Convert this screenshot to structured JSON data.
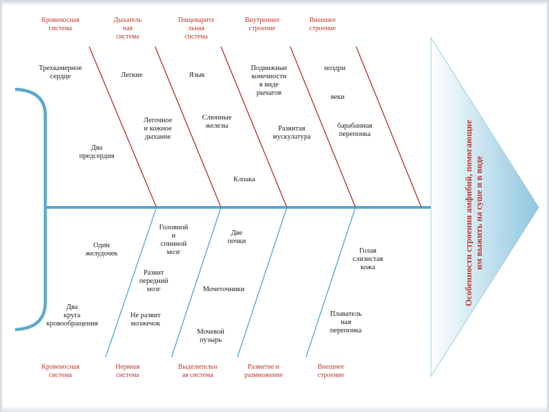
{
  "title": "Особенности строения амфибий, помогающие им выжить на суше и в воде",
  "colors": {
    "spine": "#5aa9cf",
    "upper_bones": "#b23a3a",
    "lower_bones": "#5aa9cf",
    "category_text": "#c0392b",
    "arrow_fill_left": "#ffffff",
    "arrow_fill_right": "#8fc6df"
  },
  "top_categories": [
    {
      "name": "Кровеносная\nсистема"
    },
    {
      "name": "Дыхатель\nная\nсистема"
    },
    {
      "name": "Пищеварите\nльная\nсистема"
    },
    {
      "name": "Внутреннее\nстроение"
    },
    {
      "name": "Внешнее\nстроение"
    }
  ],
  "bottom_categories": [
    {
      "name": "Кровеносная\nсистема"
    },
    {
      "name": "Нервная\nсистема"
    },
    {
      "name": "Выделительн\nая система"
    },
    {
      "name": "Развитие и\nразмножение"
    },
    {
      "name": "Внешнее\nстроение"
    }
  ],
  "top_items": {
    "krov": [
      "Трехкамерное\nсердце",
      "Два\nпредсердия"
    ],
    "dyh": [
      "Легкие",
      "Легочное\nи кожное\nдыхание"
    ],
    "pish": [
      "Язык",
      "Слюнные\nжелезы",
      "Клоака"
    ],
    "vnutr": [
      "Подвижные\nконечности\nв виде\nрычагов",
      "Развитая\nмускулатура"
    ],
    "vnesh": [
      "ноздри",
      "веки",
      "барабанная\nперепонка"
    ]
  },
  "bottom_items": {
    "krov": [
      "Один\nжелудочек",
      "Два\nкруга\nкровообращения"
    ],
    "nerv": [
      "Головной\nи\nспинной\nмозг",
      "Развит\nпередний\nмозг",
      "Не развит\nмозжечок"
    ],
    "vydel": [
      "Две\nпочки",
      "Мочеточники",
      "Мочевой\nпузырь"
    ],
    "vnesh": [
      "Голая\nслизистая\nкожа",
      "Плаватель\nная\nперепонка"
    ]
  }
}
